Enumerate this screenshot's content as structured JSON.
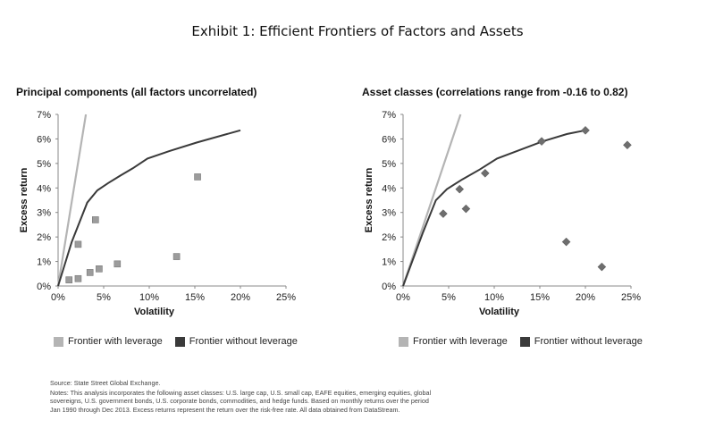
{
  "title": "Exhibit 1: Efficient Frontiers of Factors and Assets",
  "colors": {
    "frontier_with_leverage": "#b4b4b4",
    "frontier_without_leverage": "#3a3a3a",
    "marker_square": "#9c9c9c",
    "marker_diamond": "#6e6e6e"
  },
  "chart_data": [
    {
      "type": "line",
      "title": "Principal components (all factors uncorrelated)",
      "xlabel": "Volatility",
      "ylabel": "Excess return",
      "xlim": [
        0,
        25
      ],
      "ylim": [
        0,
        7
      ],
      "xticks": [
        "0%",
        "5%",
        "10%",
        "15%",
        "20%",
        "25%"
      ],
      "yticks": [
        "0%",
        "1%",
        "2%",
        "3%",
        "4%",
        "5%",
        "6%",
        "7%"
      ],
      "grid": false,
      "legend": "bottom",
      "series": [
        {
          "name": "Frontier with leverage",
          "x": [
            0,
            3.05
          ],
          "y": [
            0,
            7
          ]
        },
        {
          "name": "Frontier without leverage",
          "x": [
            0,
            1.5,
            3.2,
            4.3,
            5.5,
            6.8,
            8.2,
            9.8,
            12.2,
            15.2,
            20
          ],
          "y": [
            0,
            1.8,
            3.4,
            3.9,
            4.2,
            4.5,
            4.8,
            5.2,
            5.5,
            5.85,
            6.35
          ]
        }
      ],
      "points": [
        {
          "x": 1.2,
          "y": 0.25
        },
        {
          "x": 2.2,
          "y": 0.3
        },
        {
          "x": 3.5,
          "y": 0.55
        },
        {
          "x": 4.5,
          "y": 0.7
        },
        {
          "x": 6.5,
          "y": 0.9
        },
        {
          "x": 2.2,
          "y": 1.7
        },
        {
          "x": 4.1,
          "y": 2.7
        },
        {
          "x": 13,
          "y": 1.2
        },
        {
          "x": 15.3,
          "y": 4.45
        }
      ],
      "marker": "square",
      "legend_entries": [
        "Frontier with leverage",
        "Frontier without leverage"
      ]
    },
    {
      "type": "line",
      "title": "Asset classes (correlations range from -0.16 to 0.82)",
      "xlabel": "Volatility",
      "ylabel": "Excess return",
      "xlim": [
        0,
        25
      ],
      "ylim": [
        0,
        7
      ],
      "xticks": [
        "0%",
        "5%",
        "10%",
        "15%",
        "20%",
        "25%"
      ],
      "yticks": [
        "0%",
        "1%",
        "2%",
        "3%",
        "4%",
        "5%",
        "6%",
        "7%"
      ],
      "grid": false,
      "legend": "bottom",
      "series": [
        {
          "name": "Frontier with leverage",
          "x": [
            0,
            6.3
          ],
          "y": [
            0,
            7
          ]
        },
        {
          "name": "Frontier without leverage",
          "x": [
            0,
            2.2,
            3.6,
            4.8,
            6.5,
            8.4,
            10.3,
            12.8,
            15.3,
            18,
            20
          ],
          "y": [
            0,
            2.2,
            3.5,
            3.95,
            4.35,
            4.75,
            5.2,
            5.55,
            5.9,
            6.2,
            6.35
          ]
        }
      ],
      "points": [
        {
          "x": 4.4,
          "y": 2.95
        },
        {
          "x": 6.2,
          "y": 3.95
        },
        {
          "x": 6.9,
          "y": 3.15
        },
        {
          "x": 9,
          "y": 4.6
        },
        {
          "x": 15.2,
          "y": 5.9
        },
        {
          "x": 20,
          "y": 6.35
        },
        {
          "x": 17.9,
          "y": 1.8
        },
        {
          "x": 21.8,
          "y": 0.78
        },
        {
          "x": 24.6,
          "y": 5.75
        }
      ],
      "marker": "diamond",
      "legend_entries": [
        "Frontier with leverage",
        "Frontier without leverage"
      ]
    }
  ],
  "notes": {
    "source": "Source: State Street Global Exchange.",
    "lines": [
      "Notes: This analysis incorporates the following asset classes: U.S. large cap, U.S. small cap, EAFE equities, emerging equities, global",
      "sovereigns, U.S. government bonds, U.S. corporate bonds, commodities, and hedge funds.  Based on monthly returns over the period",
      "Jan 1990 through Dec 2013. Excess returns represent the return over the risk-free rate. All data obtained from DataStream."
    ]
  }
}
